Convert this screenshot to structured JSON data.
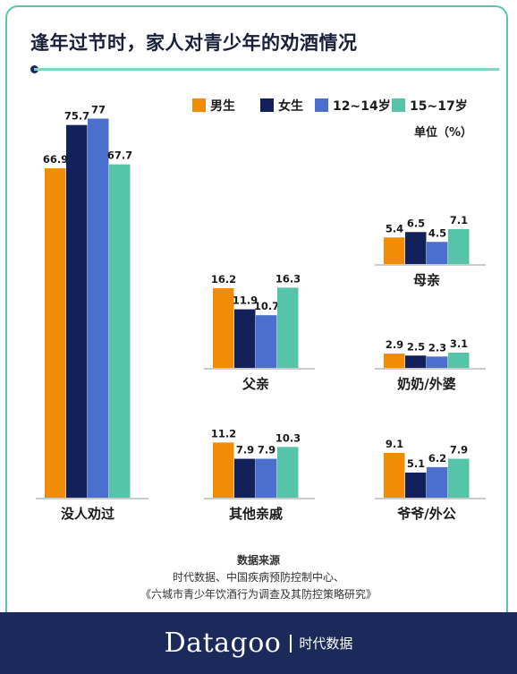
{
  "title": "逢年过节时，家人对青少年的劝酒情况",
  "colors": {
    "boys": "#f28b05",
    "girls": "#13215a",
    "age_12_14": "#4a6fcc",
    "age_15_17": "#55c4a8",
    "frame": "#5cc4ad",
    "footer": "#1b2a5b"
  },
  "chart_data": {
    "type": "bar",
    "legend": [
      "男生",
      "女生",
      "12~14岁",
      "15~17岁"
    ],
    "unit_label": "单位（%）",
    "legend_placement": "top-right",
    "groups": [
      {
        "label": "没人劝过",
        "values": [
          66.9,
          75.7,
          77,
          67.7
        ]
      },
      {
        "label": "父亲",
        "values": [
          16.2,
          11.9,
          10.7,
          16.3
        ]
      },
      {
        "label": "其他亲戚",
        "values": [
          11.2,
          7.9,
          7.9,
          10.3
        ]
      },
      {
        "label": "母亲",
        "values": [
          5.4,
          6.5,
          4.5,
          7.1
        ]
      },
      {
        "label": "奶奶/外婆",
        "values": [
          2.9,
          2.5,
          2.3,
          3.1
        ]
      },
      {
        "label": "爷爷/外公",
        "values": [
          9.1,
          5.1,
          6.2,
          7.9
        ]
      }
    ]
  },
  "source": {
    "heading": "数据来源",
    "line1": "时代数据、中国疾病预防控制中心、",
    "line2": "《六城市青少年饮酒行为调查及其防控策略研究》"
  },
  "brand": {
    "name": "Datagoo",
    "cn": "时代数据"
  }
}
